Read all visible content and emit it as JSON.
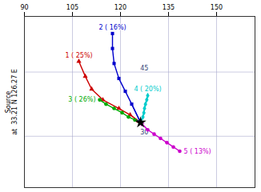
{
  "chart_data": {
    "type": "line",
    "ylabel": [
      "Source",
      "at  33.21 N 126.27 E"
    ],
    "xlim": [
      90,
      162
    ],
    "xticks": [
      90,
      105,
      120,
      135,
      150
    ],
    "ylim": [
      18,
      58
    ],
    "yticks": [
      30,
      45
    ],
    "grid": true,
    "source": {
      "x": 126.27,
      "y": 33.21,
      "color": "#000000",
      "marker": "star"
    },
    "series": [
      {
        "name": "1 ( 25%)",
        "color": "#cc0000",
        "marker": "triangle",
        "x": [
          107.0,
          109.0,
          111.0,
          114.5,
          119.5,
          123.0,
          126.27
        ],
        "values": [
          47.5,
          44.0,
          41.0,
          38.5,
          36.5,
          35.0,
          33.21
        ]
      },
      {
        "name": "2 ( 16%)",
        "color": "#0000cc",
        "marker": "square",
        "x": [
          117.5,
          117.5,
          118.0,
          119.5,
          121.5,
          123.5,
          126.27
        ],
        "values": [
          54.0,
          50.5,
          47.0,
          43.5,
          40.5,
          37.5,
          33.21
        ]
      },
      {
        "name": "3 ( 26%)",
        "color": "#00aa00",
        "marker": "circle",
        "x": [
          113.5,
          115.5,
          118.0,
          120.5,
          122.5,
          124.5,
          126.27
        ],
        "values": [
          38.5,
          37.5,
          36.5,
          35.5,
          34.5,
          33.8,
          33.21
        ]
      },
      {
        "name": "4 ( 20%)",
        "color": "#00cccc",
        "marker": "diamond",
        "x": [
          128.5,
          128.2,
          127.8,
          127.5,
          127.3,
          127.0,
          126.27
        ],
        "values": [
          39.5,
          38.5,
          37.5,
          36.5,
          35.5,
          34.5,
          33.21
        ]
      },
      {
        "name": "5 ( 13%)",
        "color": "#cc00cc",
        "marker": "circle",
        "x": [
          138.5,
          136.5,
          134.5,
          132.5,
          130.5,
          128.5,
          126.27
        ],
        "values": [
          26.5,
          27.5,
          28.5,
          29.5,
          30.5,
          31.5,
          33.21
        ]
      }
    ]
  }
}
